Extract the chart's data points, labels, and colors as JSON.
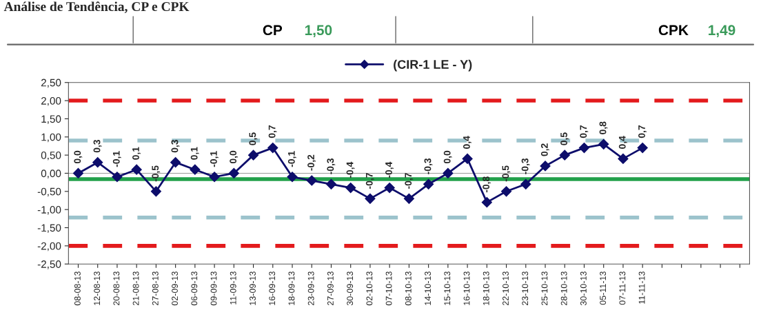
{
  "chart_data": {
    "type": "line",
    "title": "Análise de Tendência, CP e CPK",
    "annotations": [
      "CP",
      "1,50",
      "CPK",
      "1,49"
    ],
    "categories": [
      "08-08-13",
      "12-08-13",
      "20-08-13",
      "21-08-13",
      "27-08-13",
      "02-09-13",
      "06-09-13",
      "09-09-13",
      "11-09-13",
      "13-09-13",
      "16-09-13",
      "18-09-13",
      "23-09-13",
      "27-09-13",
      "30-09-13",
      "02-10-13",
      "07-10-13",
      "08-10-13",
      "14-10-13",
      "15-10-13",
      "16-10-13",
      "18-10-13",
      "22-10-13",
      "23-10-13",
      "25-10-13",
      "28-10-13",
      "30-10-13",
      "05-11-13",
      "07-11-13",
      "11-11-13",
      null,
      null,
      null,
      null,
      null
    ],
    "series": [
      {
        "name": "(CIR-1 LE - Y)",
        "color": "#0d0d6b",
        "values": [
          0.0,
          0.3,
          -0.1,
          0.1,
          -0.5,
          0.3,
          0.1,
          -0.1,
          0.0,
          0.5,
          0.7,
          -0.1,
          -0.2,
          -0.3,
          -0.4,
          -0.7,
          -0.4,
          -0.7,
          -0.3,
          0.0,
          0.4,
          -0.8,
          -0.5,
          -0.3,
          0.2,
          0.5,
          0.7,
          0.8,
          0.4,
          0.7,
          null,
          null,
          null,
          null,
          null
        ],
        "value_labels": [
          "0,0",
          "0,3",
          "-0,1",
          "0,1",
          "-0,5",
          "0,3",
          "0,1",
          "-0,1",
          "0,0",
          "0,5",
          "0,7",
          "-0,1",
          "-0,2",
          "-0,3",
          "-0,4",
          "-0,7",
          "-0,4",
          "-0,7",
          "-0,3",
          "0,0",
          "0,4",
          "-0,8",
          "-0,5",
          "-0,3",
          "0,2",
          "0,5",
          "0,7",
          "0,8",
          "0,4",
          "0,7",
          null,
          null,
          null,
          null,
          null
        ]
      }
    ],
    "marker": "diamond",
    "line_style": "solid",
    "legend": "top",
    "grid": false,
    "ylim": [
      -2.5,
      2.5
    ],
    "yticks": [
      {
        "value": -2.5,
        "label": "-2,50"
      },
      {
        "value": -2.0,
        "label": "-2,00"
      },
      {
        "value": -1.5,
        "label": "-1,50"
      },
      {
        "value": -1.0,
        "label": "-1,00"
      },
      {
        "value": -0.5,
        "label": "-0,50"
      },
      {
        "value": 0.0,
        "label": "0,00"
      },
      {
        "value": 0.5,
        "label": "0,50"
      },
      {
        "value": 1.0,
        "label": "1,00"
      },
      {
        "value": 1.5,
        "label": "1,50"
      },
      {
        "value": 2.0,
        "label": "2,00"
      },
      {
        "value": 2.5,
        "label": "2,50"
      }
    ],
    "ref_lines": [
      {
        "axis": "y",
        "value": 2.0,
        "color": "#e31a1c",
        "line_style": "dashed"
      },
      {
        "axis": "y",
        "value": -2.0,
        "color": "#e31a1c",
        "line_style": "dashed"
      },
      {
        "axis": "y",
        "value": 0.9,
        "color": "#9cc3cc",
        "line_style": "dashed"
      },
      {
        "axis": "y",
        "value": -1.22,
        "color": "#9cc3cc",
        "line_style": "dashed"
      },
      {
        "axis": "y",
        "value": -0.16,
        "color": "#22a04a",
        "line_style": "solid"
      }
    ]
  }
}
